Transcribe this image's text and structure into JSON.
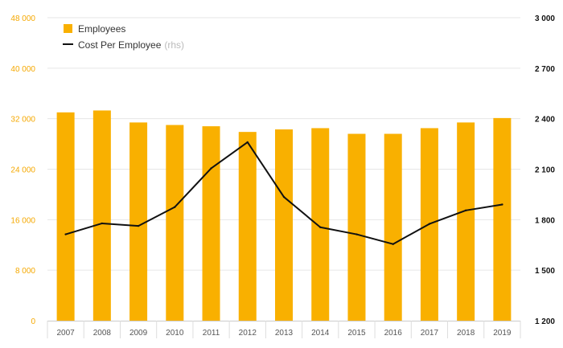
{
  "chart_data": {
    "type": "bar",
    "categories": [
      "2007",
      "2008",
      "2009",
      "2010",
      "2011",
      "2012",
      "2013",
      "2014",
      "2015",
      "2016",
      "2017",
      "2018",
      "2019"
    ],
    "series": [
      {
        "name": "Employees",
        "type": "bar",
        "axis": "left",
        "color": "#f9b000",
        "values": [
          33000,
          33300,
          31400,
          31000,
          30800,
          29900,
          30300,
          30500,
          29600,
          29600,
          30500,
          31400,
          32100
        ]
      },
      {
        "name": "Cost Per Employee",
        "axis_label": "(rhs)",
        "type": "line",
        "axis": "right",
        "color": "#111111",
        "values": [
          1713,
          1778,
          1763,
          1875,
          2105,
          2260,
          1935,
          1755,
          1713,
          1655,
          1775,
          1855,
          1890
        ]
      }
    ],
    "y_left": {
      "ylim": [
        0,
        48000
      ],
      "ticks": [
        0,
        8000,
        16000,
        24000,
        32000,
        40000,
        48000
      ],
      "tick_labels": [
        "0",
        "8 000",
        "16 000",
        "24 000",
        "32 000",
        "40 000",
        "48 000"
      ]
    },
    "y_right": {
      "ylim": [
        1200,
        3000
      ],
      "ticks": [
        1200,
        1500,
        1800,
        2100,
        2400,
        2700,
        3000
      ],
      "tick_labels": [
        "1 200",
        "1 500",
        "1 800",
        "2 100",
        "2 400",
        "2 700",
        "3 000"
      ]
    },
    "grid": true,
    "legend_position": "top-left",
    "title": "",
    "xlabel": "",
    "ylabel": ""
  }
}
